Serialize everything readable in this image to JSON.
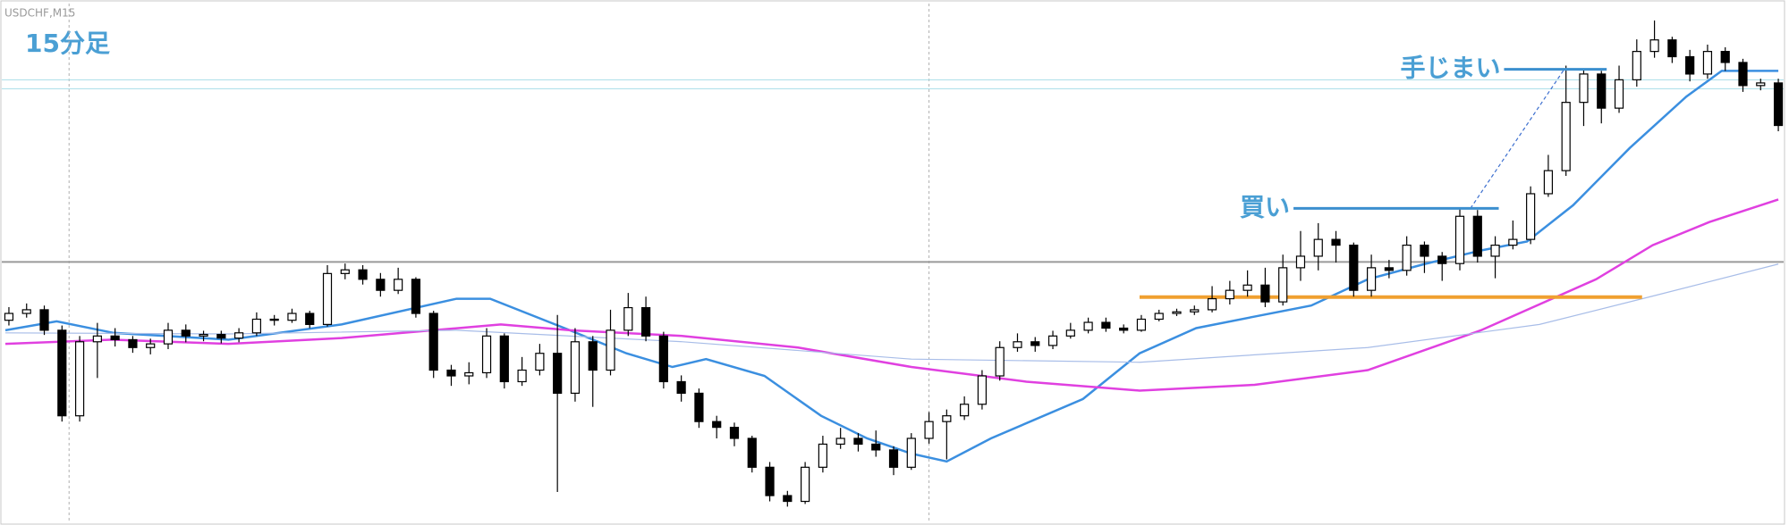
{
  "chart_data": {
    "type": "candlestick",
    "title": "USDCHF,M15",
    "subtitle": "15分足",
    "xlim": [
      -0.2,
      100.3
    ],
    "ylim": [
      0,
      100
    ],
    "up_color": "#ffffff",
    "down_color": "#000000",
    "open": [
      39.0,
      40.3,
      41.0,
      37.1,
      20.8,
      34.9,
      36.0,
      35.3,
      33.8,
      34.5,
      37.1,
      36.0,
      36.3,
      35.6,
      36.6,
      39.2,
      39.0,
      40.3,
      38.2,
      47.9,
      48.6,
      46.8,
      44.7,
      46.8,
      40.3,
      29.5,
      28.4,
      29.0,
      36.0,
      27.3,
      29.5,
      32.7,
      25.1,
      34.9,
      29.5,
      37.1,
      41.4,
      36.0,
      27.3,
      25.1,
      19.7,
      18.6,
      16.5,
      11.0,
      5.6,
      4.5,
      11.0,
      15.4,
      16.5,
      15.4,
      14.3,
      11.0,
      16.5,
      19.7,
      20.8,
      23.0,
      28.4,
      33.8,
      34.9,
      34.2,
      36.0,
      37.1,
      38.6,
      37.5,
      37.1,
      39.2,
      40.3,
      40.6,
      41.0,
      43.1,
      44.7,
      45.7,
      42.5,
      49.0,
      51.2,
      54.4,
      53.3,
      44.7,
      49.0,
      48.5,
      53.3,
      51.2,
      49.8,
      58.8,
      51.2,
      53.3,
      54.4,
      63.1,
      67.5,
      80.5,
      85.9,
      79.4,
      84.8,
      90.2,
      92.4,
      89.2,
      85.9,
      90.2,
      88.1,
      83.7,
      84.2
    ],
    "high": [
      41.5,
      42.2,
      41.8,
      38.0,
      36.0,
      38.5,
      37.5,
      36.0,
      35.5,
      38.5,
      38.2,
      37.0,
      37.0,
      37.5,
      40.5,
      40.0,
      41.2,
      40.8,
      49.5,
      49.8,
      49.5,
      48.0,
      49.0,
      47.2,
      40.8,
      30.5,
      31.0,
      37.5,
      36.5,
      32.0,
      34.5,
      40.0,
      37.5,
      36.0,
      41.0,
      44.2,
      43.5,
      36.8,
      28.5,
      26.0,
      20.8,
      19.5,
      17.0,
      12.0,
      6.5,
      12.0,
      17.0,
      18.5,
      17.5,
      18.0,
      15.0,
      17.5,
      21.5,
      22.0,
      24.5,
      29.5,
      35.0,
      36.5,
      35.8,
      37.0,
      38.5,
      39.5,
      39.5,
      38.2,
      40.0,
      41.0,
      41.2,
      41.8,
      45.5,
      46.5,
      48.5,
      49.0,
      51.5,
      56.0,
      57.5,
      56.0,
      53.8,
      51.5,
      50.5,
      55.0,
      54.0,
      52.0,
      60.5,
      60.0,
      55.0,
      58.0,
      64.5,
      70.5,
      87.5,
      87.0,
      86.5,
      87.5,
      92.5,
      96.1,
      93.0,
      90.5,
      91.5,
      91.0,
      88.8,
      85.0,
      85.0
    ],
    "low": [
      38.0,
      39.5,
      36.2,
      19.7,
      19.7,
      28.0,
      34.0,
      32.8,
      32.5,
      33.5,
      34.8,
      35.0,
      34.6,
      34.8,
      36.0,
      38.0,
      38.5,
      37.5,
      37.8,
      46.8,
      45.8,
      43.5,
      44.0,
      39.5,
      28.0,
      26.5,
      26.8,
      28.0,
      26.0,
      26.5,
      28.5,
      6.3,
      23.5,
      22.5,
      28.5,
      36.0,
      35.0,
      26.0,
      23.5,
      18.5,
      16.5,
      15.0,
      10.0,
      4.5,
      3.5,
      4.0,
      10.0,
      14.5,
      14.0,
      13.0,
      9.5,
      10.5,
      15.5,
      12.5,
      20.0,
      22.0,
      27.5,
      33.0,
      33.0,
      33.5,
      35.5,
      36.5,
      36.8,
      36.5,
      36.8,
      38.8,
      39.8,
      40.0,
      40.5,
      42.0,
      43.5,
      41.5,
      41.8,
      46.5,
      48.5,
      50.0,
      43.5,
      43.5,
      47.0,
      47.5,
      48.0,
      46.5,
      48.5,
      50.0,
      47.0,
      52.5,
      53.5,
      62.5,
      66.5,
      76.0,
      76.5,
      78.5,
      83.5,
      89.0,
      88.0,
      84.5,
      85.0,
      86.5,
      82.5,
      82.8,
      75.0
    ],
    "close": [
      40.3,
      41.0,
      37.1,
      20.8,
      34.9,
      36.0,
      35.3,
      33.8,
      34.5,
      37.1,
      36.0,
      36.3,
      35.6,
      36.6,
      39.2,
      39.0,
      40.3,
      38.2,
      47.9,
      48.6,
      46.8,
      44.7,
      46.8,
      40.3,
      29.5,
      28.4,
      29.0,
      36.0,
      27.3,
      29.5,
      32.7,
      25.1,
      34.9,
      29.5,
      37.1,
      41.4,
      36.0,
      27.3,
      25.1,
      19.7,
      18.6,
      16.5,
      11.0,
      5.6,
      4.5,
      11.0,
      15.4,
      16.5,
      15.4,
      14.3,
      11.0,
      16.5,
      19.7,
      20.8,
      23.0,
      28.4,
      33.8,
      34.9,
      34.2,
      36.0,
      37.1,
      38.6,
      37.5,
      37.1,
      39.2,
      40.3,
      40.6,
      41.0,
      43.1,
      44.7,
      45.7,
      42.5,
      49.0,
      51.2,
      54.4,
      53.3,
      44.7,
      49.0,
      48.5,
      53.3,
      51.2,
      49.8,
      58.8,
      51.2,
      53.3,
      54.4,
      63.1,
      67.5,
      80.5,
      85.9,
      79.4,
      84.8,
      90.2,
      92.4,
      89.2,
      85.9,
      90.2,
      88.1,
      83.7,
      84.2,
      76.1
    ],
    "overlays": [
      {
        "color": "#3b8fe0",
        "width": 2.5,
        "x": [
          -0.2,
          2.7,
          5.9,
          12.4,
          18.8,
          25.3,
          27.2,
          31.7,
          34.9,
          37.5,
          39.4,
          42.7,
          45.9,
          48.5,
          51.0,
          53.0,
          55.5,
          60.7,
          63.9,
          67.1,
          70.4,
          73.6,
          76.8,
          80.0,
          83.2,
          85.8,
          88.4,
          91.6,
          94.8,
          96.8,
          100.0
        ],
        "values": [
          37.1,
          38.8,
          36.6,
          35.3,
          38.2,
          43.1,
          43.1,
          37.1,
          32.7,
          30.1,
          31.6,
          28.4,
          20.8,
          16.5,
          13.6,
          12.1,
          16.5,
          24.0,
          32.7,
          37.5,
          39.7,
          41.8,
          46.8,
          49.7,
          52.3,
          54.0,
          60.9,
          71.8,
          81.6,
          86.5,
          86.5
        ]
      },
      {
        "color": "#e040e0",
        "width": 2.5,
        "x": [
          -0.2,
          5.9,
          12.4,
          18.8,
          27.8,
          31.7,
          38.1,
          44.6,
          51.0,
          57.5,
          63.9,
          70.4,
          76.8,
          83.2,
          89.7,
          92.9,
          96.1,
          100.0
        ],
        "values": [
          34.5,
          35.3,
          34.5,
          35.6,
          38.2,
          37.1,
          36.0,
          33.8,
          30.1,
          27.3,
          25.6,
          26.7,
          29.5,
          37.1,
          46.8,
          53.3,
          57.7,
          62.0
        ]
      },
      {
        "color": "#a8bde8",
        "width": 1.2,
        "x": [
          -0.2,
          12.4,
          25.3,
          38.1,
          51.0,
          63.9,
          76.8,
          86.5,
          92.9,
          100.0
        ],
        "values": [
          36.6,
          36.4,
          37.1,
          34.9,
          31.6,
          31.0,
          33.8,
          38.2,
          43.6,
          49.7
        ]
      }
    ],
    "levels": [
      {
        "value": 50.1,
        "color": "#9a9a9a"
      },
      {
        "value": 84.8,
        "color": "#a8dde8"
      },
      {
        "value": 83.1,
        "color": "#a8dde8"
      }
    ],
    "vlines": [
      3.4,
      52.0
    ],
    "zone": {
      "value": 43.4,
      "x": [
        63.9,
        92.3
      ],
      "color": "#f0a030"
    },
    "annotations": [
      {
        "text": "買い",
        "value": 60.3,
        "x": [
          72.6,
          84.2
        ],
        "color": "#3c8fcf"
      },
      {
        "text": "手じまい",
        "value": 86.8,
        "x": [
          84.5,
          90.3
        ],
        "color": "#3c8fcf"
      }
    ],
    "trade_line": {
      "x": [
        82.6,
        87.9
      ],
      "values": [
        60.3,
        86.8
      ],
      "color": "#3c6fcf"
    }
  }
}
